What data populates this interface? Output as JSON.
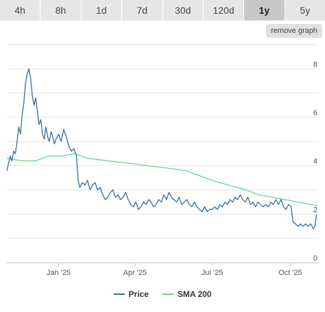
{
  "tabs": [
    {
      "label": "4h",
      "active": false
    },
    {
      "label": "8h",
      "active": false
    },
    {
      "label": "1d",
      "active": false
    },
    {
      "label": "7d",
      "active": false
    },
    {
      "label": "30d",
      "active": false
    },
    {
      "label": "120d",
      "active": false
    },
    {
      "label": "1y",
      "active": true
    },
    {
      "label": "5y",
      "active": false
    }
  ],
  "remove_graph_label": "remove graph",
  "chart_data": {
    "type": "line",
    "x_start": "2024-11-01",
    "x_end": "2025-11-02",
    "ylim": [
      0,
      9
    ],
    "yticks": [
      "0",
      "2",
      "4",
      "6",
      "8"
    ],
    "xtick_labels": [
      {
        "label": "Jan '25",
        "date": "2025-01-01"
      },
      {
        "label": "Apr '25",
        "date": "2025-04-01"
      },
      {
        "label": "Jul '25",
        "date": "2025-07-01"
      },
      {
        "label": "Oct '25",
        "date": "2025-10-01"
      }
    ],
    "grid": true,
    "legend_placement": "bottom-center",
    "series": [
      {
        "name": "Price",
        "color": "#2f6fa3",
        "points": [
          [
            "2024-11-01",
            3.8
          ],
          [
            "2024-11-03",
            4.1
          ],
          [
            "2024-11-05",
            4.4
          ],
          [
            "2024-11-07",
            4.2
          ],
          [
            "2024-11-09",
            4.6
          ],
          [
            "2024-11-11",
            4.5
          ],
          [
            "2024-11-13",
            5.0
          ],
          [
            "2024-11-15",
            5.6
          ],
          [
            "2024-11-17",
            5.3
          ],
          [
            "2024-11-19",
            6.1
          ],
          [
            "2024-11-21",
            6.6
          ],
          [
            "2024-11-23",
            7.4
          ],
          [
            "2024-11-25",
            7.8
          ],
          [
            "2024-11-27",
            8.0
          ],
          [
            "2024-11-29",
            7.6
          ],
          [
            "2024-12-01",
            6.9
          ],
          [
            "2024-12-03",
            6.5
          ],
          [
            "2024-12-05",
            6.8
          ],
          [
            "2024-12-07",
            6.2
          ],
          [
            "2024-12-09",
            5.7
          ],
          [
            "2024-12-11",
            5.9
          ],
          [
            "2024-12-13",
            5.3
          ],
          [
            "2024-12-15",
            5.1
          ],
          [
            "2024-12-17",
            5.6
          ],
          [
            "2024-12-19",
            5.2
          ],
          [
            "2024-12-21",
            5.0
          ],
          [
            "2024-12-23",
            5.4
          ],
          [
            "2024-12-25",
            5.2
          ],
          [
            "2024-12-27",
            4.9
          ],
          [
            "2024-12-29",
            5.1
          ],
          [
            "2025-01-01",
            5.3
          ],
          [
            "2025-01-04",
            5.0
          ],
          [
            "2025-01-07",
            5.5
          ],
          [
            "2025-01-10",
            5.2
          ],
          [
            "2025-01-13",
            4.8
          ],
          [
            "2025-01-16",
            4.6
          ],
          [
            "2025-01-19",
            4.7
          ],
          [
            "2025-01-22",
            4.4
          ],
          [
            "2025-01-24",
            3.4
          ],
          [
            "2025-01-26",
            3.1
          ],
          [
            "2025-01-29",
            3.3
          ],
          [
            "2025-02-01",
            3.2
          ],
          [
            "2025-02-04",
            3.4
          ],
          [
            "2025-02-07",
            3.0
          ],
          [
            "2025-02-10",
            3.2
          ],
          [
            "2025-02-13",
            3.3
          ],
          [
            "2025-02-16",
            3.0
          ],
          [
            "2025-02-19",
            3.1
          ],
          [
            "2025-02-22",
            2.8
          ],
          [
            "2025-02-25",
            2.6
          ],
          [
            "2025-02-28",
            2.7
          ],
          [
            "2025-03-03",
            2.9
          ],
          [
            "2025-03-06",
            3.0
          ],
          [
            "2025-03-09",
            2.7
          ],
          [
            "2025-03-12",
            2.8
          ],
          [
            "2025-03-15",
            2.6
          ],
          [
            "2025-03-18",
            2.7
          ],
          [
            "2025-03-21",
            2.9
          ],
          [
            "2025-03-24",
            2.6
          ],
          [
            "2025-03-27",
            2.4
          ],
          [
            "2025-03-30",
            2.3
          ],
          [
            "2025-04-02",
            2.5
          ],
          [
            "2025-04-05",
            2.2
          ],
          [
            "2025-04-08",
            2.3
          ],
          [
            "2025-04-11",
            2.5
          ],
          [
            "2025-04-14",
            2.4
          ],
          [
            "2025-04-17",
            2.6
          ],
          [
            "2025-04-20",
            2.5
          ],
          [
            "2025-04-23",
            2.3
          ],
          [
            "2025-04-26",
            2.4
          ],
          [
            "2025-04-29",
            2.6
          ],
          [
            "2025-05-02",
            2.5
          ],
          [
            "2025-05-05",
            2.8
          ],
          [
            "2025-05-08",
            2.6
          ],
          [
            "2025-05-11",
            2.9
          ],
          [
            "2025-05-14",
            2.7
          ],
          [
            "2025-05-17",
            2.6
          ],
          [
            "2025-05-20",
            2.5
          ],
          [
            "2025-05-23",
            2.7
          ],
          [
            "2025-05-26",
            2.4
          ],
          [
            "2025-05-29",
            2.5
          ],
          [
            "2025-06-01",
            2.6
          ],
          [
            "2025-06-04",
            2.4
          ],
          [
            "2025-06-07",
            2.3
          ],
          [
            "2025-06-10",
            2.5
          ],
          [
            "2025-06-13",
            2.3
          ],
          [
            "2025-06-16",
            2.2
          ],
          [
            "2025-06-19",
            2.1
          ],
          [
            "2025-06-22",
            2.3
          ],
          [
            "2025-06-25",
            2.1
          ],
          [
            "2025-06-28",
            2.2
          ],
          [
            "2025-07-01",
            2.2
          ],
          [
            "2025-07-04",
            2.3
          ],
          [
            "2025-07-07",
            2.2
          ],
          [
            "2025-07-10",
            2.4
          ],
          [
            "2025-07-13",
            2.3
          ],
          [
            "2025-07-16",
            2.5
          ],
          [
            "2025-07-19",
            2.4
          ],
          [
            "2025-07-22",
            2.6
          ],
          [
            "2025-07-25",
            2.5
          ],
          [
            "2025-07-28",
            2.7
          ],
          [
            "2025-07-31",
            2.6
          ],
          [
            "2025-08-03",
            2.8
          ],
          [
            "2025-08-06",
            2.6
          ],
          [
            "2025-08-09",
            2.5
          ],
          [
            "2025-08-12",
            2.7
          ],
          [
            "2025-08-15",
            2.4
          ],
          [
            "2025-08-18",
            2.5
          ],
          [
            "2025-08-21",
            2.3
          ],
          [
            "2025-08-24",
            2.5
          ],
          [
            "2025-08-27",
            2.4
          ],
          [
            "2025-08-30",
            2.3
          ],
          [
            "2025-09-02",
            2.4
          ],
          [
            "2025-09-05",
            2.3
          ],
          [
            "2025-09-08",
            2.5
          ],
          [
            "2025-09-11",
            2.4
          ],
          [
            "2025-09-14",
            2.6
          ],
          [
            "2025-09-17",
            2.4
          ],
          [
            "2025-09-20",
            2.6
          ],
          [
            "2025-09-23",
            2.3
          ],
          [
            "2025-09-26",
            2.2
          ],
          [
            "2025-09-29",
            2.4
          ],
          [
            "2025-10-02",
            2.3
          ],
          [
            "2025-10-04",
            1.7
          ],
          [
            "2025-10-07",
            1.6
          ],
          [
            "2025-10-10",
            1.5
          ],
          [
            "2025-10-13",
            1.6
          ],
          [
            "2025-10-16",
            1.5
          ],
          [
            "2025-10-19",
            1.6
          ],
          [
            "2025-10-22",
            1.5
          ],
          [
            "2025-10-25",
            1.6
          ],
          [
            "2025-10-28",
            1.4
          ],
          [
            "2025-10-30",
            1.5
          ],
          [
            "2025-11-01",
            2.0
          ]
        ]
      },
      {
        "name": "SMA 200",
        "color": "#5fd38d",
        "points": [
          [
            "2024-11-01",
            4.3
          ],
          [
            "2024-11-20",
            4.2
          ],
          [
            "2024-12-05",
            4.2
          ],
          [
            "2024-12-20",
            4.4
          ],
          [
            "2025-01-05",
            4.4
          ],
          [
            "2025-01-20",
            4.5
          ],
          [
            "2025-02-05",
            4.3
          ],
          [
            "2025-03-01",
            4.2
          ],
          [
            "2025-03-25",
            4.1
          ],
          [
            "2025-04-15",
            4.0
          ],
          [
            "2025-05-10",
            3.9
          ],
          [
            "2025-05-30",
            3.8
          ],
          [
            "2025-06-15",
            3.6
          ],
          [
            "2025-07-01",
            3.4
          ],
          [
            "2025-07-20",
            3.2
          ],
          [
            "2025-08-10",
            3.0
          ],
          [
            "2025-08-25",
            2.8
          ],
          [
            "2025-09-10",
            2.7
          ],
          [
            "2025-09-25",
            2.6
          ],
          [
            "2025-10-10",
            2.5
          ],
          [
            "2025-10-25",
            2.4
          ],
          [
            "2025-11-02",
            2.35
          ]
        ]
      }
    ]
  }
}
